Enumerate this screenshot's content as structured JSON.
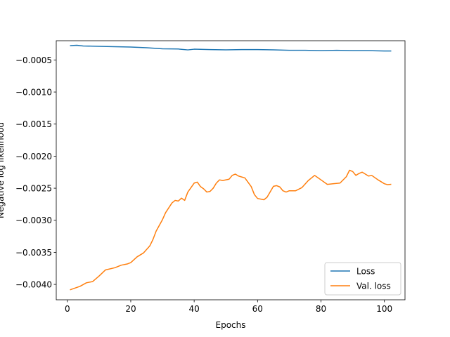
{
  "chart_data": {
    "type": "line",
    "xlabel": "Epochs",
    "ylabel": "Negative log likelihood",
    "xlim": [
      -3.5,
      106.5
    ],
    "ylim": [
      -0.00424,
      -0.0002
    ],
    "xticks": [
      0,
      20,
      40,
      60,
      80,
      100
    ],
    "xtick_labels": [
      "0",
      "20",
      "40",
      "60",
      "80",
      "100"
    ],
    "yticks": [
      -0.004,
      -0.0035,
      -0.003,
      -0.0025,
      -0.002,
      -0.0015,
      -0.001,
      -0.0005
    ],
    "ytick_labels": [
      "−0.0040",
      "−0.0035",
      "−0.0030",
      "−0.0025",
      "−0.0020",
      "−0.0015",
      "−0.0010",
      "−0.0005"
    ],
    "legend_position": "lower-right",
    "grid": false,
    "series": [
      {
        "name": "Loss",
        "color": "#1f77b4",
        "points": [
          [
            1,
            -0.000276
          ],
          [
            3,
            -0.000271
          ],
          [
            5,
            -0.000282
          ],
          [
            10,
            -0.000287
          ],
          [
            15,
            -0.000293
          ],
          [
            20,
            -0.000298
          ],
          [
            25,
            -0.00031
          ],
          [
            30,
            -0.000326
          ],
          [
            35,
            -0.000329
          ],
          [
            38,
            -0.000343
          ],
          [
            40,
            -0.000332
          ],
          [
            45,
            -0.000338
          ],
          [
            50,
            -0.000343
          ],
          [
            55,
            -0.000338
          ],
          [
            60,
            -0.000338
          ],
          [
            65,
            -0.000343
          ],
          [
            70,
            -0.000349
          ],
          [
            75,
            -0.000349
          ],
          [
            80,
            -0.000354
          ],
          [
            85,
            -0.000349
          ],
          [
            90,
            -0.000354
          ],
          [
            95,
            -0.000354
          ],
          [
            100,
            -0.00036
          ],
          [
            102,
            -0.00036
          ]
        ]
      },
      {
        "name": "Val. loss",
        "color": "#ff7f0e",
        "points": [
          [
            1,
            -0.004082
          ],
          [
            4,
            -0.00403
          ],
          [
            6,
            -0.003975
          ],
          [
            8,
            -0.003955
          ],
          [
            10,
            -0.00387
          ],
          [
            12,
            -0.003775
          ],
          [
            15,
            -0.00374
          ],
          [
            17,
            -0.0037
          ],
          [
            19,
            -0.00368
          ],
          [
            20,
            -0.00366
          ],
          [
            22,
            -0.00357
          ],
          [
            24,
            -0.00351
          ],
          [
            26,
            -0.0034
          ],
          [
            27,
            -0.0033
          ],
          [
            28,
            -0.00317
          ],
          [
            30,
            -0.00299
          ],
          [
            31,
            -0.00288
          ],
          [
            33,
            -0.00273
          ],
          [
            34,
            -0.00269
          ],
          [
            35,
            -0.0027
          ],
          [
            36,
            -0.002655
          ],
          [
            37,
            -0.00269
          ],
          [
            38,
            -0.00256
          ],
          [
            40,
            -0.00242
          ],
          [
            41,
            -0.002405
          ],
          [
            42,
            -0.002475
          ],
          [
            43,
            -0.00251
          ],
          [
            44,
            -0.00256
          ],
          [
            45,
            -0.00255
          ],
          [
            46,
            -0.0025
          ],
          [
            47,
            -0.00242
          ],
          [
            48,
            -0.00237
          ],
          [
            49,
            -0.00238
          ],
          [
            51,
            -0.00236
          ],
          [
            52,
            -0.0023
          ],
          [
            53,
            -0.00228
          ],
          [
            54,
            -0.00231
          ],
          [
            56,
            -0.00234
          ],
          [
            58,
            -0.002475
          ],
          [
            59,
            -0.0026
          ],
          [
            60,
            -0.00266
          ],
          [
            62,
            -0.00268
          ],
          [
            63,
            -0.00264
          ],
          [
            65,
            -0.00247
          ],
          [
            66,
            -0.00246
          ],
          [
            67,
            -0.00248
          ],
          [
            68,
            -0.00254
          ],
          [
            69,
            -0.00256
          ],
          [
            70,
            -0.00254
          ],
          [
            72,
            -0.00254
          ],
          [
            74,
            -0.00249
          ],
          [
            76,
            -0.00238
          ],
          [
            78,
            -0.0023
          ],
          [
            80,
            -0.00237
          ],
          [
            82,
            -0.00244
          ],
          [
            84,
            -0.00243
          ],
          [
            86,
            -0.00242
          ],
          [
            88,
            -0.00232
          ],
          [
            89,
            -0.00222
          ],
          [
            90,
            -0.00224
          ],
          [
            91,
            -0.0023
          ],
          [
            92,
            -0.00227
          ],
          [
            93,
            -0.00225
          ],
          [
            95,
            -0.00231
          ],
          [
            96,
            -0.0023
          ],
          [
            98,
            -0.00237
          ],
          [
            100,
            -0.00243
          ],
          [
            101,
            -0.002445
          ],
          [
            102,
            -0.00244
          ]
        ]
      }
    ]
  }
}
